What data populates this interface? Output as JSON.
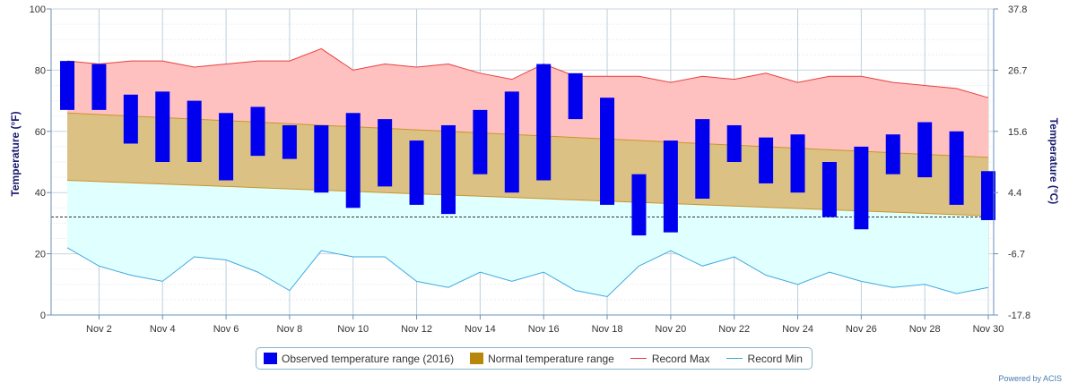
{
  "chart_data": {
    "type": "range-bar-area",
    "x_categories": [
      "1",
      "2",
      "3",
      "4",
      "5",
      "6",
      "7",
      "8",
      "9",
      "10",
      "11",
      "12",
      "13",
      "14",
      "15",
      "16",
      "17",
      "18",
      "19",
      "20",
      "21",
      "22",
      "23",
      "24",
      "25",
      "26",
      "27",
      "28",
      "29",
      "30"
    ],
    "x_tick_labels": [
      "Nov 2",
      "Nov 4",
      "Nov 6",
      "Nov 8",
      "Nov 10",
      "Nov 12",
      "Nov 14",
      "Nov 16",
      "Nov 18",
      "Nov 20",
      "Nov 22",
      "Nov 24",
      "Nov 26",
      "Nov 28",
      "Nov 30"
    ],
    "x_tick_days": [
      2,
      4,
      6,
      8,
      10,
      12,
      14,
      16,
      18,
      20,
      22,
      24,
      26,
      28,
      30
    ],
    "ylabel_left": "Temperature (°F)",
    "ylabel_right": "Temperature (°C)",
    "ylim": [
      0,
      100
    ],
    "y_ticks_left": [
      "0",
      "20",
      "40",
      "60",
      "80",
      "100"
    ],
    "y_ticks_right": [
      "-17.8",
      "-6.7",
      "4.4",
      "15.6",
      "26.7",
      "37.8"
    ],
    "reference_line_f": 32,
    "series": {
      "observed": {
        "name": "Observed temperature range (2016)",
        "color": "#0000ee",
        "low": [
          67,
          67,
          56,
          50,
          50,
          44,
          52,
          51,
          40,
          35,
          42,
          36,
          33,
          46,
          40,
          44,
          64,
          36,
          26,
          27,
          38,
          50,
          43,
          40,
          32,
          28,
          46,
          45,
          36,
          31
        ],
        "high": [
          83,
          82,
          72,
          73,
          70,
          66,
          68,
          62,
          62,
          66,
          64,
          57,
          62,
          67,
          73,
          82,
          79,
          71,
          46,
          57,
          64,
          62,
          58,
          59,
          50,
          55,
          59,
          63,
          60,
          47
        ]
      },
      "normal": {
        "name": "Normal temperature range",
        "color": "#b8860b",
        "low": [
          44,
          43.6,
          43.2,
          42.8,
          42.4,
          42,
          41.6,
          41.2,
          40.8,
          40.4,
          40,
          39.6,
          39.2,
          38.8,
          38.4,
          38,
          37.6,
          37.2,
          36.8,
          36.4,
          36,
          35.6,
          35.2,
          34.8,
          34.4,
          34,
          33.6,
          33.2,
          32.8,
          32.4
        ],
        "high": [
          66,
          65.5,
          65,
          64.5,
          64,
          63.5,
          63,
          62.5,
          62,
          61.5,
          61,
          60.5,
          60,
          59.5,
          59,
          58.5,
          58,
          57.5,
          57,
          56.5,
          56,
          55.5,
          55,
          54.5,
          54,
          53.5,
          53,
          52.5,
          52,
          51.5
        ]
      },
      "record_max": {
        "name": "Record Max",
        "color": "#e8413c",
        "values": [
          83,
          82,
          83,
          83,
          81,
          82,
          83,
          83,
          87,
          80,
          82,
          81,
          82,
          79,
          77,
          82,
          78,
          78,
          78,
          76,
          78,
          77,
          79,
          76,
          78,
          78,
          76,
          75,
          74,
          71
        ]
      },
      "record_min": {
        "name": "Record Min",
        "color": "#3fa9e0",
        "values": [
          22,
          16,
          13,
          11,
          19,
          18,
          14,
          8,
          21,
          19,
          19,
          11,
          9,
          14,
          11,
          14,
          8,
          6,
          16,
          21,
          16,
          19,
          13,
          10,
          14,
          11,
          9,
          10,
          7,
          9
        ]
      }
    },
    "legend_position": "bottom-center",
    "grid": true
  },
  "legend": {
    "observed": "Observed temperature range (2016)",
    "normal": "Normal temperature range",
    "record_max": "Record Max",
    "record_min": "Record Min"
  },
  "credit": "Powered by ACIS"
}
